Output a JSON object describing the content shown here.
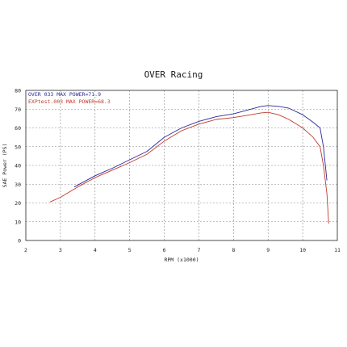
{
  "chart_data": {
    "type": "line",
    "title": "OVER Racing",
    "xlabel": "RPM (x1000)",
    "ylabel": "SAE Power (PS)",
    "xlim": [
      2,
      11
    ],
    "ylim": [
      0,
      80
    ],
    "x_ticks": [
      "2",
      "3",
      "4",
      "5",
      "6",
      "7",
      "8",
      "9",
      "10",
      "11"
    ],
    "y_ticks": [
      "0",
      "10",
      "20",
      "30",
      "40",
      "50",
      "60",
      "70",
      "80"
    ],
    "grid": true,
    "legend_position": "top-left",
    "series": [
      {
        "name": "OVER 033  MAX POWER=71.9",
        "color": "#2a2a9a",
        "x": [
          3.4,
          4.0,
          4.5,
          5.0,
          5.5,
          6.0,
          6.5,
          7.0,
          7.5,
          8.0,
          8.5,
          8.8,
          9.0,
          9.3,
          9.6,
          10.0,
          10.3,
          10.5,
          10.6,
          10.7
        ],
        "y": [
          28.5,
          34.5,
          38.5,
          43.0,
          47.5,
          55.0,
          60.0,
          63.5,
          66.0,
          67.5,
          70.0,
          71.5,
          71.9,
          71.5,
          70.5,
          67.0,
          63.0,
          60.0,
          50.0,
          32.0
        ]
      },
      {
        "name": "EXPtest.003  MAX POWER=68.3",
        "color": "#c0392b",
        "x": [
          2.7,
          3.0,
          3.5,
          4.0,
          4.5,
          5.0,
          5.5,
          6.0,
          6.5,
          7.0,
          7.5,
          8.0,
          8.5,
          8.8,
          9.0,
          9.3,
          9.6,
          10.0,
          10.3,
          10.5,
          10.6,
          10.7,
          10.75
        ],
        "y": [
          20.5,
          23.0,
          28.5,
          33.5,
          37.5,
          41.5,
          46.0,
          53.0,
          58.5,
          62.0,
          64.5,
          65.5,
          67.0,
          68.0,
          68.3,
          67.0,
          64.5,
          60.0,
          55.0,
          50.0,
          40.0,
          25.0,
          9.0
        ]
      }
    ]
  }
}
